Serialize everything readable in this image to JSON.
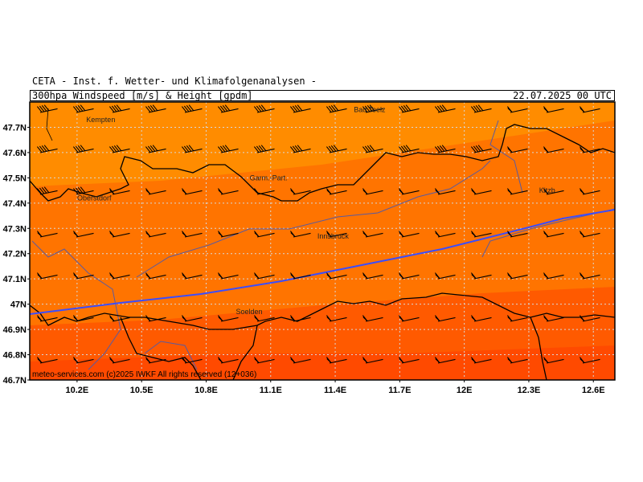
{
  "header": {
    "institute": "CETA - Inst. f. Wetter- und Klimafolgenanalysen -",
    "product": "300hpa Windspeed [m/s] & Height [gpdm]",
    "valid_time": "22.07.2025 00 UTC"
  },
  "axes": {
    "lat_ticks": [
      "47.7N",
      "47.6N",
      "47.5N",
      "47.4N",
      "47.3N",
      "47.2N",
      "47.1N",
      "47N",
      "46.9N",
      "46.8N",
      "46.7N"
    ],
    "lat_values": [
      47.7,
      47.6,
      47.5,
      47.4,
      47.3,
      47.2,
      47.1,
      47.0,
      46.9,
      46.8,
      46.7
    ],
    "lon_ticks": [
      "10.2E",
      "10.5E",
      "10.8E",
      "11.1E",
      "11.4E",
      "11.7E",
      "12E",
      "12.3E",
      "12.6E"
    ],
    "lon_values": [
      10.2,
      10.5,
      10.8,
      11.1,
      11.4,
      11.7,
      12.0,
      12.3,
      12.6
    ],
    "lon_range": [
      9.98,
      12.7
    ],
    "lat_range": [
      46.7,
      47.8
    ]
  },
  "cities": [
    {
      "name": "Kempten",
      "lon": 10.31,
      "lat": 47.72
    },
    {
      "name": "Bad Toelz",
      "lon": 11.56,
      "lat": 47.76
    },
    {
      "name": "Garm.-Part.",
      "lon": 11.09,
      "lat": 47.49
    },
    {
      "name": "Oberstdorf",
      "lon": 10.28,
      "lat": 47.41
    },
    {
      "name": "Kitzb.",
      "lon": 12.39,
      "lat": 47.44
    },
    {
      "name": "Innsbruck",
      "lon": 11.39,
      "lat": 47.26
    },
    {
      "name": "Soelden",
      "lon": 11.0,
      "lat": 46.96
    }
  ],
  "colors": {
    "band1": "#ff8c00",
    "band2": "#ff6e00",
    "band3": "#ff5a00",
    "band4": "#ff4000",
    "contour": "#3a4dff",
    "grid": "#cccccc",
    "border": "#000000",
    "river": "#5a5aa0"
  },
  "contour_height": "",
  "credit": "meteo-services.com  (c)2025 IWKF  All rights reserved (12+036)"
}
